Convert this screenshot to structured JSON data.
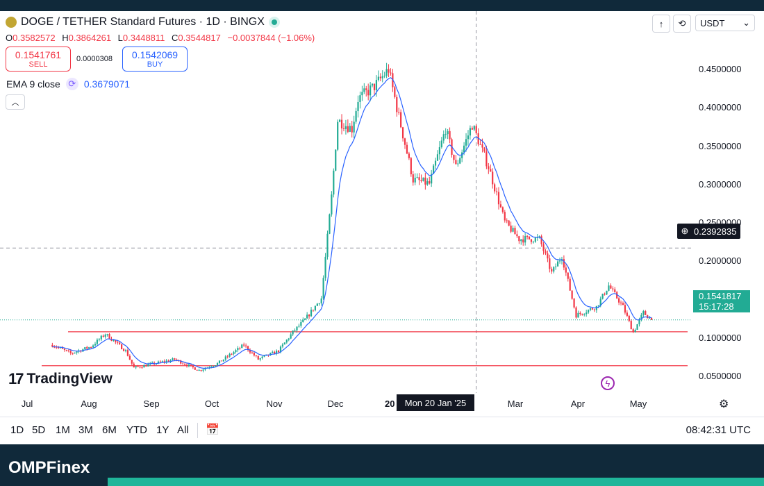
{
  "header": {
    "symbol_title": "DOGE / TETHER Standard Futures · 1D · BINGX",
    "ohlc": {
      "o_label": "O",
      "o": "0.3582572",
      "h_label": "H",
      "h": "0.3864261",
      "l_label": "L",
      "l": "0.3448811",
      "c_label": "C",
      "c": "0.3544817",
      "change": "−0.0037844 (−1.06%)"
    },
    "sell": {
      "price": "0.1541761",
      "label": "SELL"
    },
    "spread": "0.0000308",
    "buy": {
      "price": "0.1542069",
      "label": "BUY"
    },
    "indicator": {
      "label": "EMA 9 close",
      "value": "0.3679071"
    },
    "currency": "USDT",
    "icons": [
      "doge-coin-icon",
      "market-status-dot-icon",
      "arrow-up-icon",
      "compare-icon",
      "chevron-down-icon",
      "chevron-up-icon",
      "refresh-icon"
    ]
  },
  "crosshair": {
    "y_value": "0.2392835",
    "x_value": "Mon 20 Jan '25",
    "year_fragment": "20"
  },
  "last_price": {
    "price": "0.1541817",
    "countdown": "15:17:28"
  },
  "logo": {
    "mark": "17",
    "text": "TradingView"
  },
  "bottom_bar": {
    "timeframes": [
      "1D",
      "5D",
      "1M",
      "3M",
      "6M",
      "YTD",
      "1Y",
      "All"
    ],
    "clock": "08:42:31 UTC"
  },
  "footer": {
    "brand": "OMPFinex"
  },
  "colors": {
    "up": "#22ab94",
    "down": "#f23645",
    "ema": "#2962ff",
    "level": "#f23645",
    "footer": "#10293a"
  },
  "chart_data": {
    "type": "candlestick",
    "title": "DOGE / TETHER Standard Futures · 1D · BINGX",
    "x_tick_labels": [
      "Jul",
      "Aug",
      "Sep",
      "Oct",
      "Nov",
      "Dec",
      "Mar",
      "Apr",
      "May"
    ],
    "y_tick_labels": [
      "0.4500000",
      "0.4000000",
      "0.3500000",
      "0.3000000",
      "0.2500000",
      "0.2000000",
      "0.1000000",
      "0.0500000"
    ],
    "ylim": [
      0.0405,
      0.5187
    ],
    "scale": "linear",
    "grid": false,
    "horizontal_levels": [
      0.1405,
      0.1005
    ],
    "series": [
      {
        "name": "DOGE/USDT",
        "kind": "ohlc_daily_approx",
        "start_date": "2024-06-26",
        "end_date": "2025-04-16",
        "close_path": [
          {
            "date": "2024-06-26",
            "close": 0.125
          },
          {
            "date": "2024-07-05",
            "close": 0.115
          },
          {
            "date": "2024-07-15",
            "close": 0.123
          },
          {
            "date": "2024-07-22",
            "close": 0.138
          },
          {
            "date": "2024-08-01",
            "close": 0.118
          },
          {
            "date": "2024-08-05",
            "close": 0.098
          },
          {
            "date": "2024-08-15",
            "close": 0.103
          },
          {
            "date": "2024-08-25",
            "close": 0.108
          },
          {
            "date": "2024-09-06",
            "close": 0.095
          },
          {
            "date": "2024-09-15",
            "close": 0.103
          },
          {
            "date": "2024-09-28",
            "close": 0.125
          },
          {
            "date": "2024-10-05",
            "close": 0.108
          },
          {
            "date": "2024-10-15",
            "close": 0.118
          },
          {
            "date": "2024-10-22",
            "close": 0.14
          },
          {
            "date": "2024-10-28",
            "close": 0.155
          },
          {
            "date": "2024-11-05",
            "close": 0.18
          },
          {
            "date": "2024-11-10",
            "close": 0.3
          },
          {
            "date": "2024-11-13",
            "close": 0.39
          },
          {
            "date": "2024-11-20",
            "close": 0.38
          },
          {
            "date": "2024-11-23",
            "close": 0.415
          },
          {
            "date": "2024-12-01",
            "close": 0.43
          },
          {
            "date": "2024-12-08",
            "close": 0.45
          },
          {
            "date": "2024-12-12",
            "close": 0.405
          },
          {
            "date": "2024-12-20",
            "close": 0.32
          },
          {
            "date": "2024-12-28",
            "close": 0.315
          },
          {
            "date": "2025-01-05",
            "close": 0.38
          },
          {
            "date": "2025-01-10",
            "close": 0.335
          },
          {
            "date": "2025-01-18",
            "close": 0.385
          },
          {
            "date": "2025-01-26",
            "close": 0.335
          },
          {
            "date": "2025-02-03",
            "close": 0.27
          },
          {
            "date": "2025-02-10",
            "close": 0.25
          },
          {
            "date": "2025-02-20",
            "close": 0.25
          },
          {
            "date": "2025-02-26",
            "close": 0.21
          },
          {
            "date": "2025-03-03",
            "close": 0.23
          },
          {
            "date": "2025-03-10",
            "close": 0.16
          },
          {
            "date": "2025-03-20",
            "close": 0.17
          },
          {
            "date": "2025-03-26",
            "close": 0.195
          },
          {
            "date": "2025-04-02",
            "close": 0.17
          },
          {
            "date": "2025-04-07",
            "close": 0.14
          },
          {
            "date": "2025-04-12",
            "close": 0.163
          },
          {
            "date": "2025-04-16",
            "close": 0.1544817
          }
        ]
      },
      {
        "name": "EMA 9 close",
        "kind": "line"
      }
    ]
  }
}
